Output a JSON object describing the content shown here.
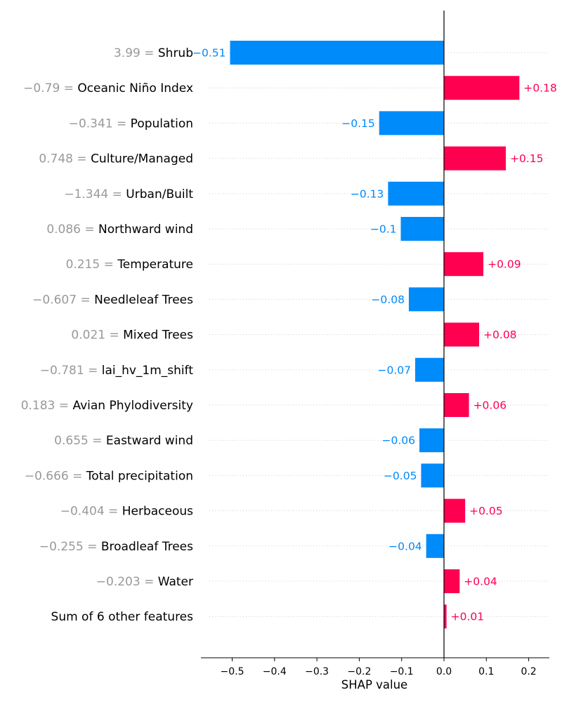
{
  "chart_data": {
    "type": "bar",
    "orientation": "horizontal",
    "title": "",
    "xlabel": "SHAP value",
    "ylabel": "",
    "xlim": [
      -0.575,
      0.25
    ],
    "x_ticks": [
      {
        "value": -0.5,
        "label": "−0.5"
      },
      {
        "value": -0.4,
        "label": "−0.4"
      },
      {
        "value": -0.3,
        "label": "−0.3"
      },
      {
        "value": -0.2,
        "label": "−0.2"
      },
      {
        "value": -0.1,
        "label": "−0.1"
      },
      {
        "value": 0.0,
        "label": "0.0"
      },
      {
        "value": 0.1,
        "label": "0.1"
      },
      {
        "value": 0.2,
        "label": "0.2"
      }
    ],
    "grid": "horizontal dotted",
    "colors": {
      "positive": "#ff0051",
      "negative": "#008bfb",
      "feature_value": "#999999"
    },
    "features": [
      {
        "value_text": "3.99 =",
        "name": "Shrub",
        "shap": -0.505,
        "label": "−0.51"
      },
      {
        "value_text": "−0.79 =",
        "name": "Oceanic Niño Index",
        "shap": 0.178,
        "label": "+0.18"
      },
      {
        "value_text": "−0.341 =",
        "name": "Population",
        "shap": -0.153,
        "label": "−0.15"
      },
      {
        "value_text": "0.748 =",
        "name": "Culture/Managed",
        "shap": 0.146,
        "label": "+0.15"
      },
      {
        "value_text": "−1.344 =",
        "name": "Urban/Built",
        "shap": -0.132,
        "label": "−0.13"
      },
      {
        "value_text": "0.086 =",
        "name": "Northward wind",
        "shap": -0.102,
        "label": "−0.1"
      },
      {
        "value_text": "0.215 =",
        "name": "Temperature",
        "shap": 0.093,
        "label": "+0.09"
      },
      {
        "value_text": "−0.607 =",
        "name": "Needleleaf Trees",
        "shap": -0.083,
        "label": "−0.08"
      },
      {
        "value_text": "0.021 =",
        "name": "Mixed Trees",
        "shap": 0.083,
        "label": "+0.08"
      },
      {
        "value_text": "−0.781 =",
        "name": "lai_hv_1m_shift",
        "shap": -0.068,
        "label": "−0.07"
      },
      {
        "value_text": "0.183 =",
        "name": "Avian Phylodiversity",
        "shap": 0.059,
        "label": "+0.06"
      },
      {
        "value_text": "0.655 =",
        "name": "Eastward wind",
        "shap": -0.058,
        "label": "−0.06"
      },
      {
        "value_text": "−0.666 =",
        "name": "Total precipitation",
        "shap": -0.054,
        "label": "−0.05"
      },
      {
        "value_text": "−0.404 =",
        "name": "Herbaceous",
        "shap": 0.05,
        "label": "+0.05"
      },
      {
        "value_text": "−0.255 =",
        "name": "Broadleaf Trees",
        "shap": -0.042,
        "label": "−0.04"
      },
      {
        "value_text": "−0.203 =",
        "name": "Water",
        "shap": 0.037,
        "label": "+0.04"
      },
      {
        "value_text": "",
        "name": "Sum of 6 other features",
        "shap": 0.006,
        "label": "+0.01"
      }
    ]
  }
}
